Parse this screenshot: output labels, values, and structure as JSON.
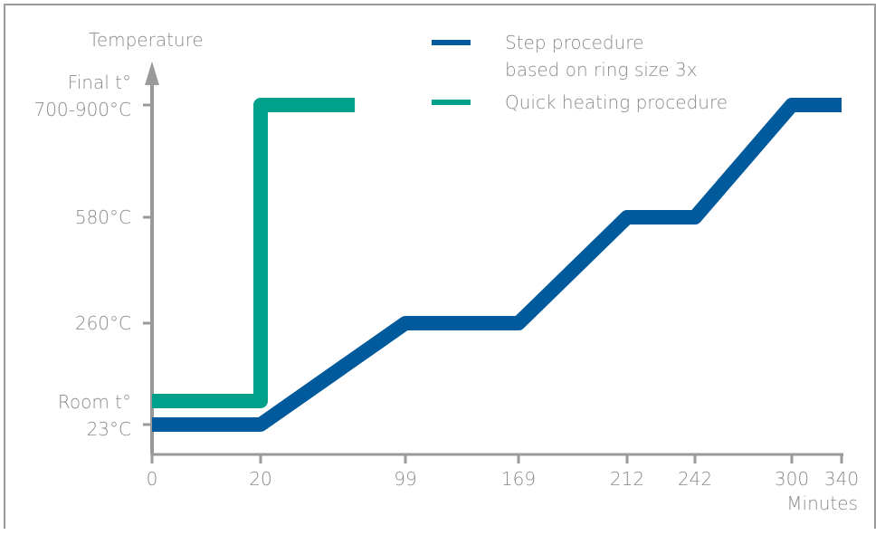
{
  "chart_data": {
    "type": "line",
    "ylabel": "Temperature",
    "xlabel": "Minutes",
    "x_ticks": [
      "0",
      "20",
      "99",
      "169",
      "212",
      "242",
      "300",
      "340"
    ],
    "x_tick_values": [
      0,
      20,
      99,
      169,
      212,
      242,
      300,
      340
    ],
    "y_ticks": [
      {
        "key": "room",
        "lines": [
          "Room t°",
          "23°C"
        ]
      },
      {
        "key": "t260",
        "lines": [
          "260°C"
        ]
      },
      {
        "key": "t580",
        "lines": [
          "580°C"
        ]
      },
      {
        "key": "final",
        "lines": [
          "Final t°",
          "700-900°C"
        ]
      }
    ],
    "xlim": [
      0,
      340
    ],
    "series": [
      {
        "name": "Step procedure based on ring size 3x",
        "legend_lines": [
          "Step procedure",
          "based on ring size 3x"
        ],
        "color": "#005a9c",
        "points": [
          [
            0,
            "room"
          ],
          [
            20,
            "room"
          ],
          [
            99,
            "t260"
          ],
          [
            169,
            "t260"
          ],
          [
            212,
            "t580"
          ],
          [
            242,
            "t580"
          ],
          [
            300,
            "final"
          ],
          [
            340,
            "final"
          ]
        ]
      },
      {
        "name": "Quick heating procedure",
        "legend_lines": [
          "Quick heating procedure"
        ],
        "color": "#00a08a",
        "points": [
          [
            0,
            "room"
          ],
          [
            20,
            "room"
          ],
          [
            20,
            "final"
          ],
          [
            100,
            "final"
          ]
        ]
      }
    ],
    "axis_color": "#9a9a9a"
  }
}
